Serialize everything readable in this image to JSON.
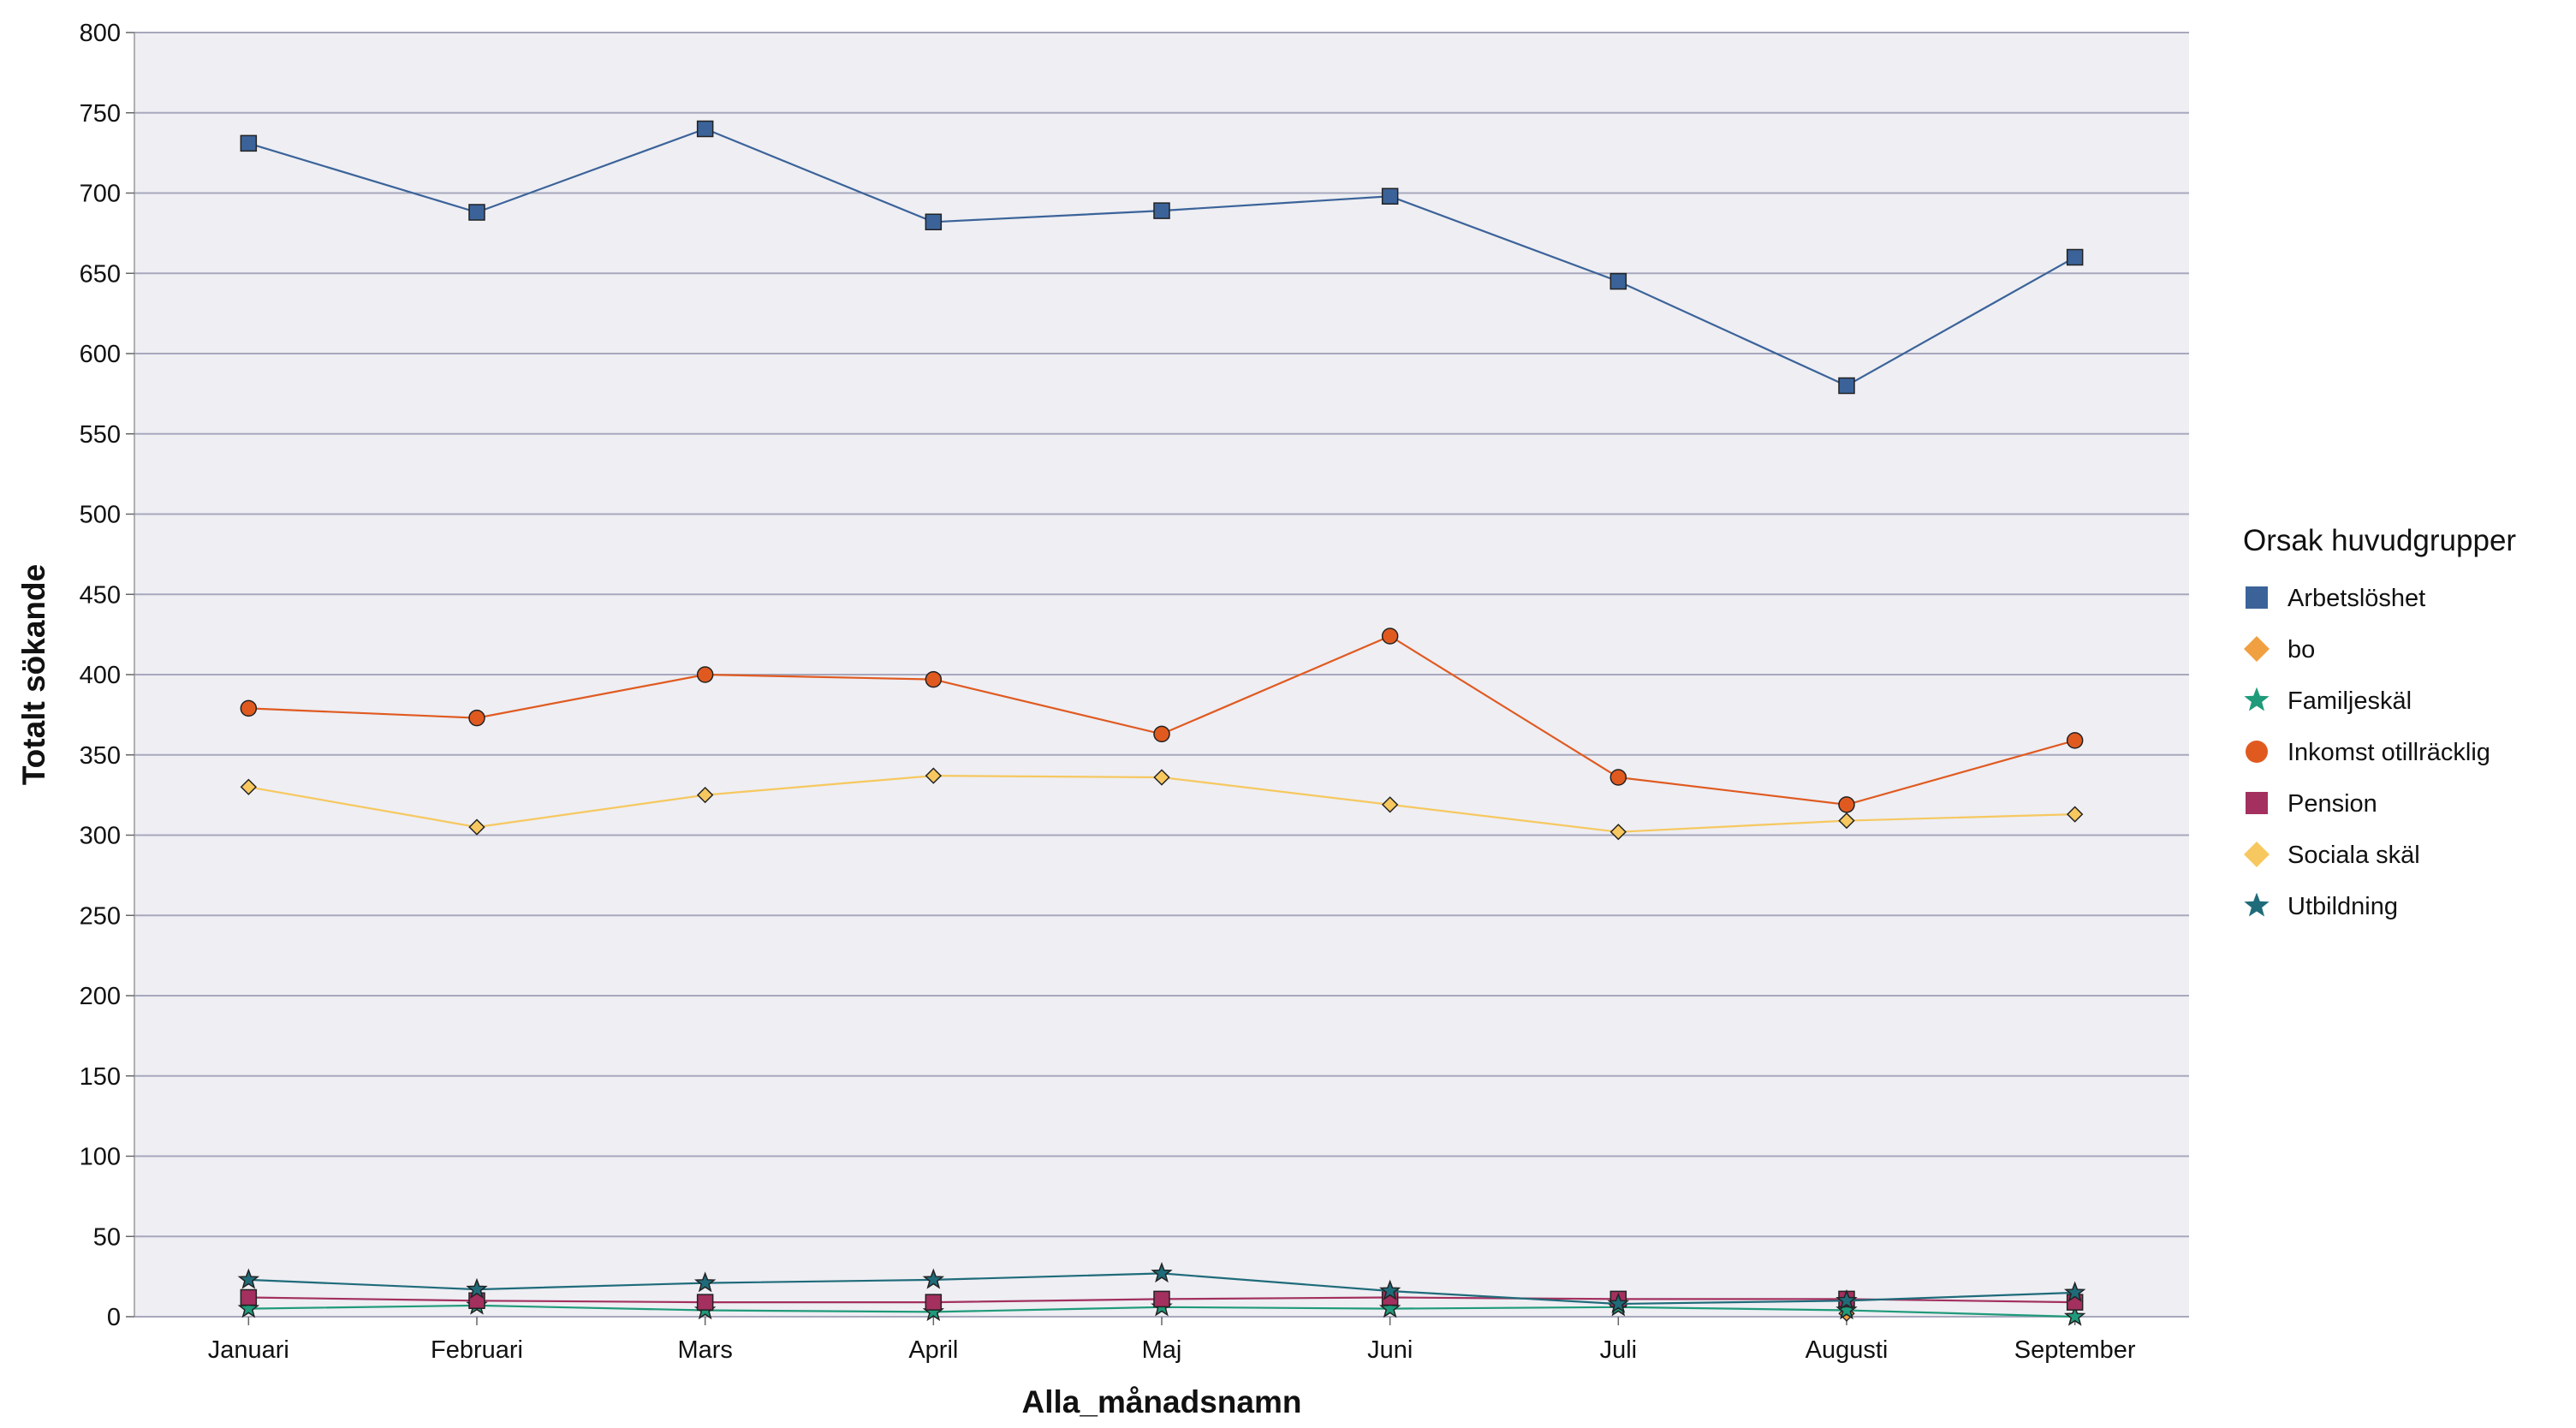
{
  "chart_data": {
    "type": "line",
    "xlabel": "Alla_månadsnamn",
    "ylabel": "Totalt sökande",
    "categories": [
      "Januari",
      "Februari",
      "Mars",
      "April",
      "Maj",
      "Juni",
      "Juli",
      "Augusti",
      "September"
    ],
    "ylim": [
      0,
      800
    ],
    "yticks": [
      0,
      50,
      100,
      150,
      200,
      250,
      300,
      350,
      400,
      450,
      500,
      550,
      600,
      650,
      700,
      750,
      800
    ],
    "grid": true,
    "legend": {
      "title": "Orsak huvudgrupper",
      "position": "right"
    },
    "series": [
      {
        "name": "Arbetslöshet",
        "color": "#3b6399",
        "marker": "square",
        "values": [
          731,
          688,
          740,
          682,
          689,
          698,
          645,
          580,
          660
        ]
      },
      {
        "name": "bo",
        "color": "#f0a040",
        "marker": "diamond",
        "values": [
          null,
          null,
          null,
          null,
          null,
          null,
          null,
          2,
          null
        ]
      },
      {
        "name": "Familjeskäl",
        "color": "#1f9a7a",
        "marker": "star",
        "values": [
          5,
          7,
          4,
          3,
          6,
          5,
          6,
          4,
          0
        ]
      },
      {
        "name": "Inkomst otillräcklig",
        "color": "#e05a20",
        "marker": "circle",
        "values": [
          379,
          373,
          400,
          397,
          363,
          424,
          336,
          319,
          359
        ]
      },
      {
        "name": "Pension",
        "color": "#a3305f",
        "marker": "square",
        "values": [
          12,
          10,
          9,
          9,
          11,
          12,
          11,
          11,
          9
        ]
      },
      {
        "name": "Sociala skäl",
        "color": "#f6c85f",
        "marker": "diamond",
        "values": [
          330,
          305,
          325,
          337,
          336,
          319,
          302,
          309,
          313
        ]
      },
      {
        "name": "Utbildning",
        "color": "#1f6b7a",
        "marker": "star",
        "values": [
          23,
          17,
          21,
          23,
          27,
          16,
          8,
          10,
          15
        ]
      }
    ]
  }
}
